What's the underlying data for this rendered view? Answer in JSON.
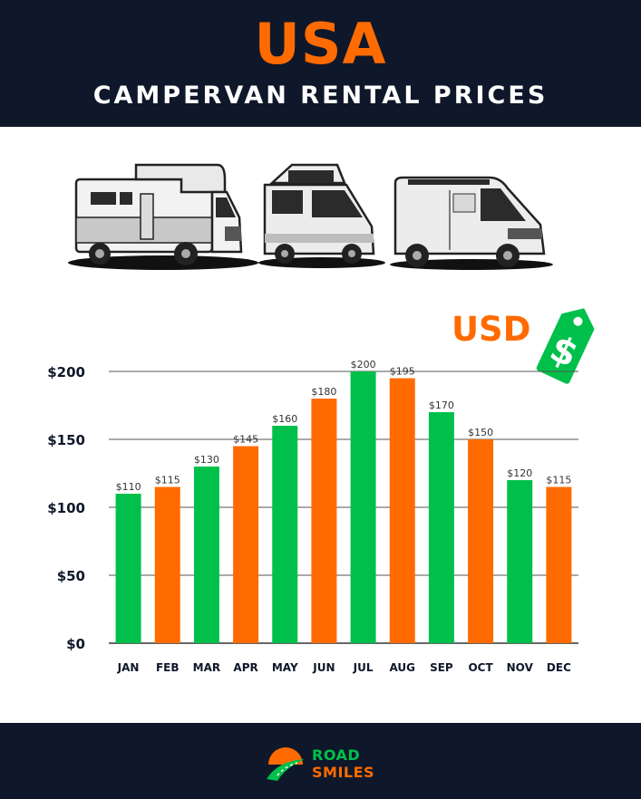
{
  "header": {
    "country": "USA",
    "subtitle": "CAMPERVAN RENTAL PRICES"
  },
  "currency_label": "USD",
  "icons": [
    "motorhome-icon",
    "popup-campervan-icon",
    "van-icon",
    "dollar-tag-icon",
    "road-logo-icon"
  ],
  "colors": {
    "navy": "#0f172a",
    "orange": "#ff6b00",
    "green": "#00c04b"
  },
  "chart_data": {
    "type": "bar",
    "categories": [
      "JAN",
      "FEB",
      "MAR",
      "APR",
      "MAY",
      "JUN",
      "JUL",
      "AUG",
      "SEP",
      "OCT",
      "NOV",
      "DEC"
    ],
    "values": [
      110,
      115,
      130,
      145,
      160,
      180,
      200,
      195,
      170,
      150,
      120,
      115
    ],
    "value_labels": [
      "$110",
      "$115",
      "$130",
      "$145",
      "$160",
      "$180",
      "$200",
      "$195",
      "$170",
      "$150",
      "$120",
      "$115"
    ],
    "yticks": [
      0,
      50,
      100,
      150,
      200
    ],
    "ytick_labels": [
      "$0",
      "$50",
      "$100",
      "$150",
      "$200"
    ],
    "ylim": [
      0,
      200
    ],
    "grid": true,
    "bar_colors": [
      "green",
      "orange",
      "green",
      "orange",
      "green",
      "orange",
      "green",
      "orange",
      "green",
      "orange",
      "green",
      "orange"
    ]
  },
  "footer": {
    "brand_line1": "ROAD",
    "brand_line2": "SMILES"
  }
}
